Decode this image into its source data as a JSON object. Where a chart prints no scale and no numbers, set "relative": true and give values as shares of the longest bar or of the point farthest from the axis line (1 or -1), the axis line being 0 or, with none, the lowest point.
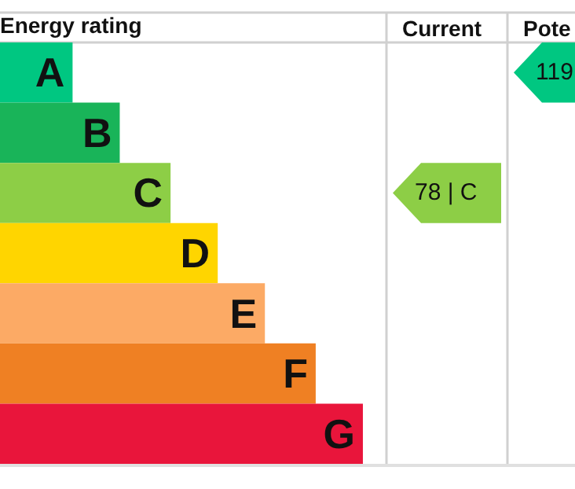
{
  "chart_data": {
    "type": "bar",
    "orientation": "horizontal",
    "relative": true,
    "title": "Energy rating",
    "categories": [
      "A",
      "B",
      "C",
      "D",
      "E",
      "F",
      "G"
    ],
    "values": [
      0.2,
      0.33,
      0.47,
      0.6,
      0.73,
      0.87,
      1
    ],
    "colors": [
      "#00c781",
      "#19b459",
      "#8dce46",
      "#ffd500",
      "#fcaa65",
      "#ef8023",
      "#e9153b"
    ],
    "annotations": [
      "Current",
      "Pote",
      "78 | C",
      "119"
    ]
  }
}
